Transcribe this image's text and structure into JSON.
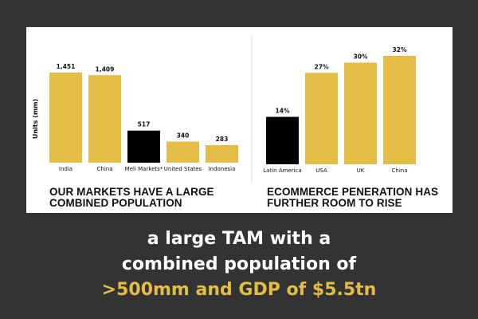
{
  "colors": {
    "background": "#333333",
    "panel": "#ffffff",
    "accent": "#e3bd45",
    "highlight": "#000000"
  },
  "chart_data": [
    {
      "type": "bar",
      "title": "OUR MARKETS HAVE A LARGE COMBINED POPULATION",
      "title_lines": [
        "OUR MARKETS HAVE A LARGE",
        "COMBINED POPULATION"
      ],
      "ylabel": "Units (mm)",
      "categories": [
        "India",
        "China",
        "Meli Markets*",
        "United States",
        "Indonesia"
      ],
      "values": [
        1451,
        1409,
        517,
        340,
        283
      ],
      "labels": [
        "1,451",
        "1,409",
        "517",
        "340",
        "283"
      ],
      "highlight": [
        false,
        false,
        true,
        false,
        false
      ],
      "ylim": [
        0,
        1451
      ],
      "grid": false
    },
    {
      "type": "bar",
      "title": "ECOMMERCE PENERATION HAS FURTHER ROOM TO RISE",
      "title_lines": [
        "ECOMMERCE PENERATION HAS",
        "FURTHER ROOM TO RISE"
      ],
      "categories": [
        "Latin America",
        "USA",
        "UK",
        "China"
      ],
      "values": [
        14,
        27,
        30,
        32
      ],
      "labels": [
        "14%",
        "27%",
        "30%",
        "32%"
      ],
      "highlight": [
        true,
        false,
        false,
        false
      ],
      "ylim": [
        0,
        32
      ],
      "grid": false
    }
  ],
  "footer": {
    "line1": "a large TAM with a",
    "line2": "combined population of",
    "line3": ">500mm and GDP of $5.5tn"
  }
}
